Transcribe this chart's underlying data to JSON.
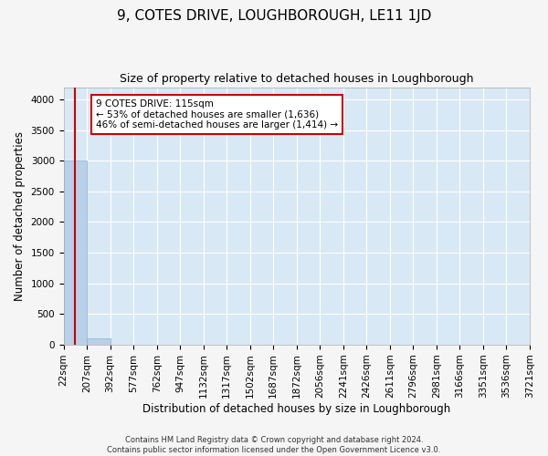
{
  "title": "9, COTES DRIVE, LOUGHBOROUGH, LE11 1JD",
  "subtitle": "Size of property relative to detached houses in Loughborough",
  "xlabel": "Distribution of detached houses by size in Loughborough",
  "ylabel": "Number of detached properties",
  "footer_line1": "Contains HM Land Registry data © Crown copyright and database right 2024.",
  "footer_line2": "Contains public sector information licensed under the Open Government Licence v3.0.",
  "bin_edges": [
    22,
    207,
    392,
    577,
    762,
    947,
    1132,
    1317,
    1502,
    1687,
    1872,
    2056,
    2241,
    2426,
    2611,
    2796,
    2981,
    3166,
    3351,
    3536,
    3721
  ],
  "bin_labels": [
    "22sqm",
    "207sqm",
    "392sqm",
    "577sqm",
    "762sqm",
    "947sqm",
    "1132sqm",
    "1317sqm",
    "1502sqm",
    "1687sqm",
    "1872sqm",
    "2056sqm",
    "2241sqm",
    "2426sqm",
    "2611sqm",
    "2796sqm",
    "2981sqm",
    "3166sqm",
    "3351sqm",
    "3536sqm",
    "3721sqm"
  ],
  "bar_heights": [
    3000,
    100,
    4,
    2,
    1,
    1,
    1,
    1,
    0,
    1,
    0,
    0,
    1,
    0,
    0,
    0,
    0,
    0,
    0,
    0
  ],
  "bar_color": "#b8d0e8",
  "bar_edge_color": "#8ab0d0",
  "property_size": 115,
  "red_line_color": "#cc0000",
  "annotation_text": "9 COTES DRIVE: 115sqm\n← 53% of detached houses are smaller (1,636)\n46% of semi-detached houses are larger (1,414) →",
  "annotation_box_facecolor": "#ffffff",
  "annotation_box_edgecolor": "#cc0000",
  "ylim": [
    0,
    4200
  ],
  "yticks": [
    0,
    500,
    1000,
    1500,
    2000,
    2500,
    3000,
    3500,
    4000
  ],
  "plot_bg_color": "#d8e8f5",
  "fig_bg_color": "#f5f5f5",
  "title_fontsize": 11,
  "subtitle_fontsize": 9,
  "axis_label_fontsize": 8.5,
  "tick_fontsize": 7.5,
  "annotation_fontsize": 7.5,
  "footer_fontsize": 6
}
